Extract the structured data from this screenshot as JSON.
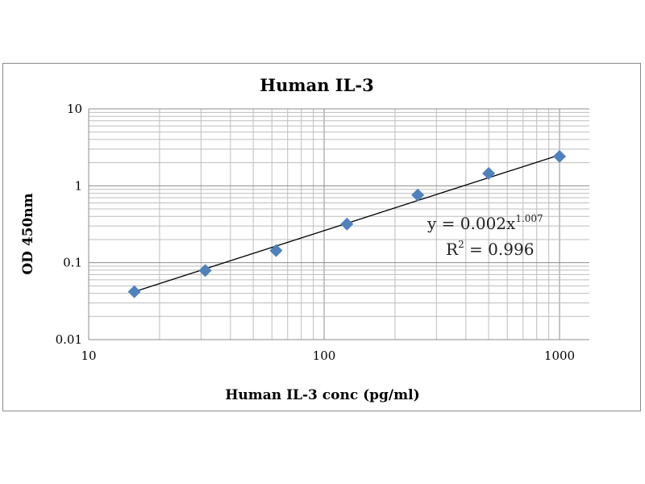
{
  "chart_data": {
    "type": "scatter",
    "title": "Human IL-3",
    "xlabel": "Human IL-3 conc (pg/ml)",
    "ylabel": "OD 450nm",
    "xscale": "log",
    "yscale": "log",
    "xlim": [
      10,
      1330
    ],
    "ylim": [
      0.01,
      10
    ],
    "x_ticks": [
      "10",
      "100",
      "1000"
    ],
    "y_ticks": [
      "0.01",
      "0.1",
      "1",
      "10"
    ],
    "grid": true,
    "series": [
      {
        "name": "Human IL-3",
        "marker": "diamond",
        "color": "#4f81bd",
        "x": [
          15.625,
          31.25,
          62.5,
          125,
          250,
          500,
          1000
        ],
        "y": [
          0.042,
          0.079,
          0.144,
          0.318,
          0.76,
          1.45,
          2.41
        ]
      }
    ],
    "trendline": {
      "type": "power",
      "coef": 0.002,
      "exponent": 1.007,
      "equation_prefix": "y = 0.002x",
      "equation_exponent": "1.007",
      "r2_prefix": "R",
      "r2_sup": "2",
      "r2_value": " = 0.996"
    }
  }
}
